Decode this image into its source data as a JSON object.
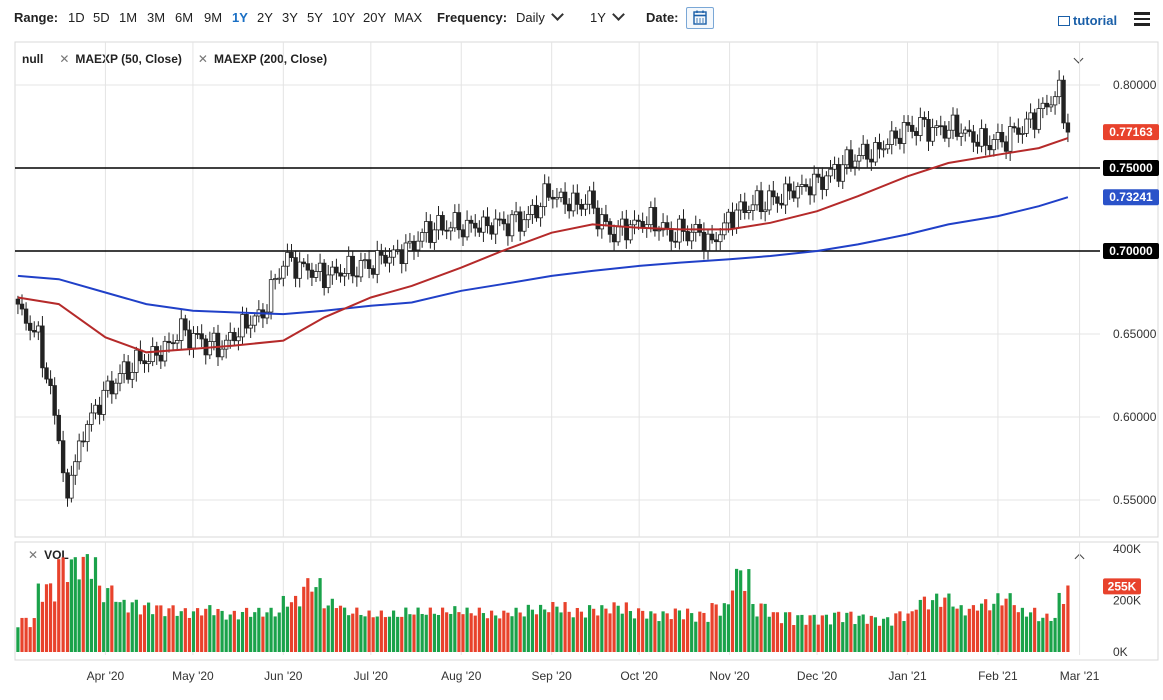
{
  "toolbar": {
    "range_label": "Range:",
    "ranges": [
      "1D",
      "5D",
      "1M",
      "3M",
      "6M",
      "9M",
      "1Y",
      "2Y",
      "3Y",
      "5Y",
      "10Y",
      "20Y",
      "MAX"
    ],
    "active_range": "1Y",
    "frequency_label": "Frequency:",
    "frequency_value": "Daily",
    "period_value": "1Y",
    "date_label": "Date:",
    "tutorial_label": "tutorial"
  },
  "legend": {
    "symbol": "null",
    "ma50": "MAEXP (50, Close)",
    "ma200": "MAEXP (200, Close)"
  },
  "volume_legend": "VOL",
  "colors": {
    "up": "#1aa24a",
    "down": "#e8422c",
    "ma50": "#b52a2a",
    "ma200": "#2040c8",
    "price_badge": "#e8422c",
    "ma200_badge": "#2a52c9",
    "level_badge": "#000000"
  },
  "chart_data": [
    {
      "type": "candlestick",
      "title": "",
      "x_ticks": [
        "Apr '20",
        "May '20",
        "Jun '20",
        "Jul '20",
        "Aug '20",
        "Sep '20",
        "Oct '20",
        "Nov '20",
        "Dec '20",
        "Jan '21",
        "Feb '21",
        "Mar '21"
      ],
      "y_ticks": [
        "0.80000",
        "0.75000",
        "0.70000",
        "0.65000",
        "0.60000",
        "0.55000"
      ],
      "ylim": [
        0.53,
        0.81
      ],
      "horizontal_lines": [
        {
          "value": 0.75,
          "label": "0.75000"
        },
        {
          "value": 0.7,
          "label": "0.70000"
        }
      ],
      "last_price": {
        "value": 0.77163,
        "label": "0.77163"
      },
      "ma200_last": {
        "value": 0.73241,
        "label": "0.73241"
      },
      "series_close": [
        {
          "date": "2020-03-02",
          "close": 0.665
        },
        {
          "date": "2020-03-09",
          "close": 0.648
        },
        {
          "date": "2020-03-16",
          "close": 0.59
        },
        {
          "date": "2020-03-19",
          "close": 0.55
        },
        {
          "date": "2020-03-23",
          "close": 0.585
        },
        {
          "date": "2020-03-30",
          "close": 0.61
        },
        {
          "date": "2020-04-06",
          "close": 0.625
        },
        {
          "date": "2020-04-13",
          "close": 0.634
        },
        {
          "date": "2020-04-20",
          "close": 0.638
        },
        {
          "date": "2020-04-27",
          "close": 0.652
        },
        {
          "date": "2020-05-04",
          "close": 0.645
        },
        {
          "date": "2020-05-11",
          "close": 0.642
        },
        {
          "date": "2020-05-18",
          "close": 0.655
        },
        {
          "date": "2020-05-25",
          "close": 0.663
        },
        {
          "date": "2020-06-01",
          "close": 0.695
        },
        {
          "date": "2020-06-08",
          "close": 0.69
        },
        {
          "date": "2020-06-15",
          "close": 0.685
        },
        {
          "date": "2020-06-22",
          "close": 0.688
        },
        {
          "date": "2020-06-29",
          "close": 0.69
        },
        {
          "date": "2020-07-06",
          "close": 0.696
        },
        {
          "date": "2020-07-13",
          "close": 0.7
        },
        {
          "date": "2020-07-20",
          "close": 0.712
        },
        {
          "date": "2020-07-27",
          "close": 0.716
        },
        {
          "date": "2020-08-03",
          "close": 0.715
        },
        {
          "date": "2020-08-10",
          "close": 0.716
        },
        {
          "date": "2020-08-17",
          "close": 0.717
        },
        {
          "date": "2020-08-24",
          "close": 0.72
        },
        {
          "date": "2020-08-31",
          "close": 0.735
        },
        {
          "date": "2020-09-07",
          "close": 0.728
        },
        {
          "date": "2020-09-14",
          "close": 0.729
        },
        {
          "date": "2020-09-21",
          "close": 0.71
        },
        {
          "date": "2020-09-28",
          "close": 0.715
        },
        {
          "date": "2020-10-05",
          "close": 0.719
        },
        {
          "date": "2020-10-12",
          "close": 0.71
        },
        {
          "date": "2020-10-19",
          "close": 0.713
        },
        {
          "date": "2020-10-26",
          "close": 0.705
        },
        {
          "date": "2020-11-02",
          "close": 0.722
        },
        {
          "date": "2020-11-09",
          "close": 0.728
        },
        {
          "date": "2020-11-16",
          "close": 0.73
        },
        {
          "date": "2020-11-23",
          "close": 0.736
        },
        {
          "date": "2020-11-30",
          "close": 0.74
        },
        {
          "date": "2020-12-07",
          "close": 0.748
        },
        {
          "date": "2020-12-14",
          "close": 0.757
        },
        {
          "date": "2020-12-21",
          "close": 0.76
        },
        {
          "date": "2020-12-28",
          "close": 0.77
        },
        {
          "date": "2021-01-04",
          "close": 0.776
        },
        {
          "date": "2021-01-11",
          "close": 0.773
        },
        {
          "date": "2021-01-18",
          "close": 0.774
        },
        {
          "date": "2021-01-25",
          "close": 0.766
        },
        {
          "date": "2021-02-01",
          "close": 0.765
        },
        {
          "date": "2021-02-08",
          "close": 0.772
        },
        {
          "date": "2021-02-15",
          "close": 0.783
        },
        {
          "date": "2021-02-22",
          "close": 0.796
        },
        {
          "date": "2021-02-25",
          "close": 0.77163
        }
      ],
      "series_ma50": [
        {
          "date": "2020-03-02",
          "value": 0.672
        },
        {
          "date": "2020-03-16",
          "value": 0.668
        },
        {
          "date": "2020-04-01",
          "value": 0.648
        },
        {
          "date": "2020-04-15",
          "value": 0.639
        },
        {
          "date": "2020-05-01",
          "value": 0.641
        },
        {
          "date": "2020-05-15",
          "value": 0.643
        },
        {
          "date": "2020-06-01",
          "value": 0.646
        },
        {
          "date": "2020-06-15",
          "value": 0.66
        },
        {
          "date": "2020-07-01",
          "value": 0.672
        },
        {
          "date": "2020-07-15",
          "value": 0.679
        },
        {
          "date": "2020-08-01",
          "value": 0.69
        },
        {
          "date": "2020-08-15",
          "value": 0.7
        },
        {
          "date": "2020-09-01",
          "value": 0.711
        },
        {
          "date": "2020-09-15",
          "value": 0.716
        },
        {
          "date": "2020-10-01",
          "value": 0.714
        },
        {
          "date": "2020-10-15",
          "value": 0.713
        },
        {
          "date": "2020-11-01",
          "value": 0.713
        },
        {
          "date": "2020-11-15",
          "value": 0.717
        },
        {
          "date": "2020-12-01",
          "value": 0.724
        },
        {
          "date": "2020-12-15",
          "value": 0.733
        },
        {
          "date": "2021-01-01",
          "value": 0.745
        },
        {
          "date": "2021-01-15",
          "value": 0.753
        },
        {
          "date": "2021-02-01",
          "value": 0.758
        },
        {
          "date": "2021-02-15",
          "value": 0.762
        },
        {
          "date": "2021-02-25",
          "value": 0.768
        }
      ],
      "series_ma200": [
        {
          "date": "2020-03-02",
          "value": 0.685
        },
        {
          "date": "2020-03-16",
          "value": 0.683
        },
        {
          "date": "2020-04-01",
          "value": 0.675
        },
        {
          "date": "2020-04-15",
          "value": 0.668
        },
        {
          "date": "2020-05-01",
          "value": 0.664
        },
        {
          "date": "2020-05-15",
          "value": 0.663
        },
        {
          "date": "2020-06-01",
          "value": 0.662
        },
        {
          "date": "2020-06-15",
          "value": 0.664
        },
        {
          "date": "2020-07-01",
          "value": 0.667
        },
        {
          "date": "2020-07-15",
          "value": 0.669
        },
        {
          "date": "2020-08-01",
          "value": 0.676
        },
        {
          "date": "2020-08-15",
          "value": 0.68
        },
        {
          "date": "2020-09-01",
          "value": 0.685
        },
        {
          "date": "2020-09-15",
          "value": 0.688
        },
        {
          "date": "2020-10-01",
          "value": 0.691
        },
        {
          "date": "2020-10-15",
          "value": 0.693
        },
        {
          "date": "2020-11-01",
          "value": 0.695
        },
        {
          "date": "2020-11-15",
          "value": 0.697
        },
        {
          "date": "2020-12-01",
          "value": 0.7
        },
        {
          "date": "2020-12-15",
          "value": 0.704
        },
        {
          "date": "2021-01-01",
          "value": 0.71
        },
        {
          "date": "2021-01-15",
          "value": 0.716
        },
        {
          "date": "2021-02-01",
          "value": 0.721
        },
        {
          "date": "2021-02-15",
          "value": 0.727
        },
        {
          "date": "2021-02-25",
          "value": 0.73241
        }
      ]
    },
    {
      "type": "bar",
      "title": "",
      "y_ticks": [
        "400K",
        "200K",
        "0K"
      ],
      "ylim": [
        0,
        400000
      ],
      "last_volume": {
        "value": 255000,
        "label": "255K"
      },
      "series_volume": [
        {
          "date": "2020-03-02",
          "value": 120000
        },
        {
          "date": "2020-03-09",
          "value": 240000
        },
        {
          "date": "2020-03-16",
          "value": 330000
        },
        {
          "date": "2020-03-23",
          "value": 340000
        },
        {
          "date": "2020-03-30",
          "value": 230000
        },
        {
          "date": "2020-04-06",
          "value": 180000
        },
        {
          "date": "2020-04-13",
          "value": 170000
        },
        {
          "date": "2020-04-20",
          "value": 160000
        },
        {
          "date": "2020-04-27",
          "value": 150000
        },
        {
          "date": "2020-05-04",
          "value": 160000
        },
        {
          "date": "2020-05-11",
          "value": 140000
        },
        {
          "date": "2020-05-18",
          "value": 150000
        },
        {
          "date": "2020-05-25",
          "value": 150000
        },
        {
          "date": "2020-06-01",
          "value": 190000
        },
        {
          "date": "2020-06-08",
          "value": 250000
        },
        {
          "date": "2020-06-15",
          "value": 180000
        },
        {
          "date": "2020-06-22",
          "value": 150000
        },
        {
          "date": "2020-06-29",
          "value": 140000
        },
        {
          "date": "2020-07-06",
          "value": 140000
        },
        {
          "date": "2020-07-13",
          "value": 150000
        },
        {
          "date": "2020-07-20",
          "value": 150000
        },
        {
          "date": "2020-07-27",
          "value": 155000
        },
        {
          "date": "2020-08-03",
          "value": 150000
        },
        {
          "date": "2020-08-10",
          "value": 140000
        },
        {
          "date": "2020-08-17",
          "value": 150000
        },
        {
          "date": "2020-08-24",
          "value": 160000
        },
        {
          "date": "2020-08-31",
          "value": 170000
        },
        {
          "date": "2020-09-07",
          "value": 150000
        },
        {
          "date": "2020-09-14",
          "value": 160000
        },
        {
          "date": "2020-09-21",
          "value": 170000
        },
        {
          "date": "2020-09-28",
          "value": 150000
        },
        {
          "date": "2020-10-05",
          "value": 140000
        },
        {
          "date": "2020-10-12",
          "value": 150000
        },
        {
          "date": "2020-10-19",
          "value": 140000
        },
        {
          "date": "2020-10-26",
          "value": 170000
        },
        {
          "date": "2020-11-02",
          "value": 290000
        },
        {
          "date": "2020-11-09",
          "value": 170000
        },
        {
          "date": "2020-11-16",
          "value": 140000
        },
        {
          "date": "2020-11-23",
          "value": 130000
        },
        {
          "date": "2020-11-30",
          "value": 130000
        },
        {
          "date": "2020-12-07",
          "value": 140000
        },
        {
          "date": "2020-12-14",
          "value": 130000
        },
        {
          "date": "2020-12-21",
          "value": 120000
        },
        {
          "date": "2020-12-28",
          "value": 140000
        },
        {
          "date": "2021-01-04",
          "value": 190000
        },
        {
          "date": "2021-01-11",
          "value": 200000
        },
        {
          "date": "2021-01-18",
          "value": 160000
        },
        {
          "date": "2021-01-25",
          "value": 180000
        },
        {
          "date": "2021-02-01",
          "value": 200000
        },
        {
          "date": "2021-02-08",
          "value": 150000
        },
        {
          "date": "2021-02-15",
          "value": 130000
        },
        {
          "date": "2021-02-22",
          "value": 200000
        },
        {
          "date": "2021-02-25",
          "value": 255000
        }
      ]
    }
  ]
}
